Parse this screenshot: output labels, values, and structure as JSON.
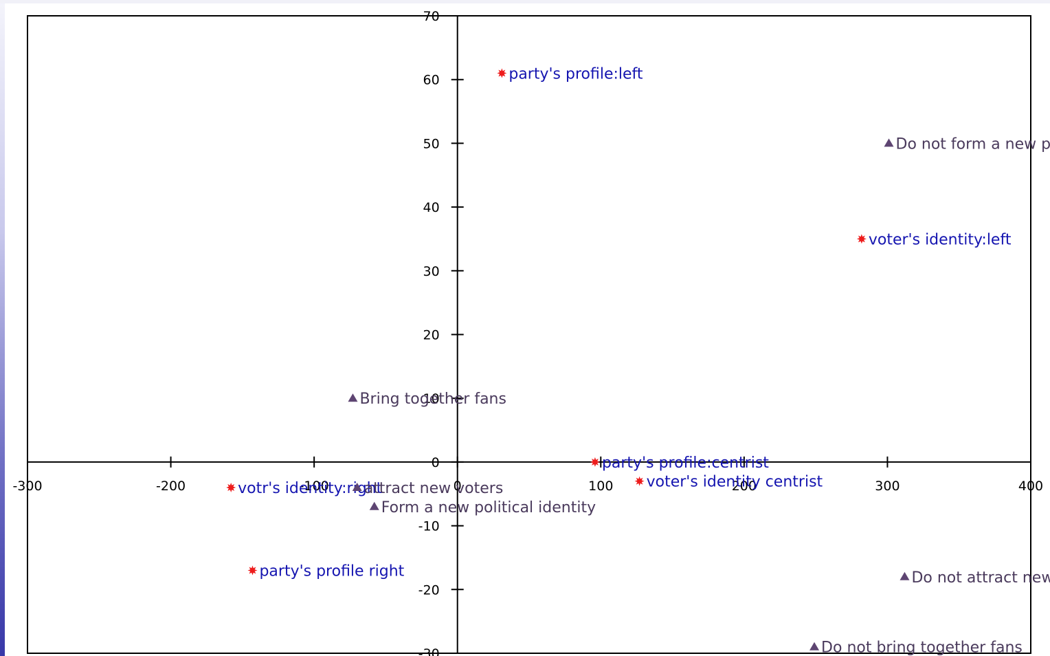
{
  "chart_data": {
    "type": "scatter",
    "title": "",
    "xlabel": "",
    "ylabel": "",
    "xlim": [
      -300,
      400
    ],
    "ylim": [
      -30,
      70
    ],
    "x_ticks": [
      -300,
      -200,
      -100,
      0,
      100,
      200,
      300,
      400
    ],
    "y_ticks": [
      -30,
      -20,
      -10,
      0,
      10,
      20,
      30,
      40,
      50,
      60,
      70
    ],
    "x_tick_labels": [
      "-300",
      "-200",
      "-100",
      "0",
      "100",
      "200",
      "300",
      "400"
    ],
    "y_tick_labels": [
      "-30",
      "-20",
      "-10",
      "0",
      "10",
      "20",
      "30",
      "40",
      "50",
      "60",
      "70"
    ],
    "grid": false,
    "series": [
      {
        "color": "#ee1c1c",
        "label_color": "#1515b0",
        "marker": "star",
        "points": [
          {
            "label": "party's profile:left",
            "x": 31,
            "y": 61
          },
          {
            "label": "voter's identity:left",
            "x": 282,
            "y": 35
          },
          {
            "label": "party's profile:centrist",
            "x": 96,
            "y": 0
          },
          {
            "label": "voter's identity centrist",
            "x": 127,
            "y": -3
          },
          {
            "label": "votr's identity:right",
            "x": -158,
            "y": -4
          },
          {
            "label": "party's profile right",
            "x": -143,
            "y": -17
          }
        ]
      },
      {
        "color": "#5e4572",
        "label_color": "#4a3a5c",
        "marker": "triangle",
        "points": [
          {
            "label": "Do not form a new political identity",
            "x": 301,
            "y": 50
          },
          {
            "label": "Bring together fans",
            "x": -73,
            "y": 10
          },
          {
            "label": "attract new voters",
            "x": -70,
            "y": -4
          },
          {
            "label": "Form a new political identity",
            "x": -58,
            "y": -7
          },
          {
            "label": "Do not attract new voters",
            "x": 312,
            "y": -18
          },
          {
            "label": "Do not bring together fans",
            "x": 249,
            "y": -29
          }
        ]
      }
    ]
  }
}
